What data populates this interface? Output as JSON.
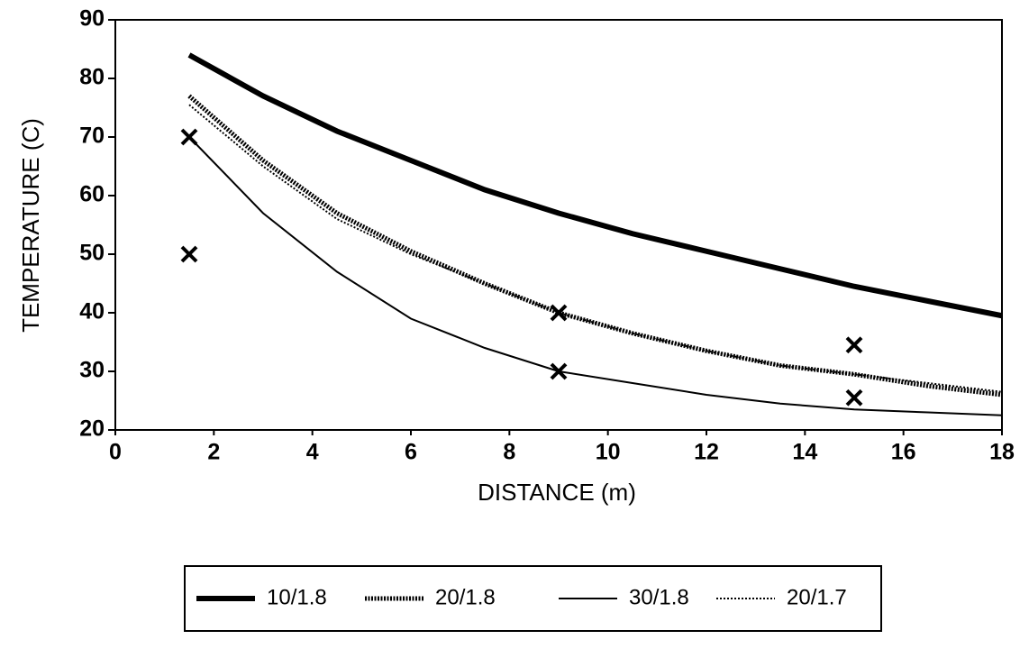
{
  "chart_data": {
    "type": "line",
    "xlabel": "DISTANCE (m)",
    "ylabel": "TEMPERATURE (C)",
    "x": [
      1.5,
      3,
      4.5,
      6,
      7.5,
      9,
      10.5,
      12,
      13.5,
      15,
      16.5,
      18
    ],
    "series": [
      {
        "name": "10/1.8",
        "color": "#000000",
        "linewidth": 6,
        "linestyle": "solid",
        "values": [
          84,
          77,
          71,
          66,
          61,
          57,
          53.5,
          50.5,
          47.5,
          44.5,
          42,
          39.5
        ]
      },
      {
        "name": "20/1.8",
        "color": "#000000",
        "linewidth": 5,
        "linestyle": "dotted",
        "values": [
          77,
          66,
          57,
          50.5,
          45,
          40,
          36.5,
          33.5,
          31,
          29.5,
          27.5,
          26
        ]
      },
      {
        "name": "30/1.8",
        "color": "#000000",
        "linewidth": 2,
        "linestyle": "solid",
        "values": [
          70,
          57,
          47,
          39,
          34,
          30,
          28,
          26,
          24.5,
          23.5,
          23,
          22.5
        ]
      },
      {
        "name": "20/1.7",
        "color": "#000000",
        "linewidth": 2,
        "linestyle": "dotted",
        "values": [
          75.5,
          65,
          56,
          50,
          45,
          40,
          36.5,
          33.5,
          31,
          29.5,
          28,
          26.5
        ]
      }
    ],
    "points": {
      "x": [
        1.5,
        1.5,
        9,
        9,
        15,
        15
      ],
      "y": [
        70,
        50,
        40,
        30,
        34.5,
        25.5
      ],
      "color": "#000000"
    },
    "xlim": [
      0,
      18
    ],
    "xticks": [
      0,
      2,
      4,
      6,
      8,
      10,
      12,
      14,
      16,
      18
    ],
    "ylim": [
      20,
      90
    ],
    "yticks": [
      20,
      30,
      40,
      50,
      60,
      70,
      80,
      90
    ],
    "legend": "bottom"
  }
}
